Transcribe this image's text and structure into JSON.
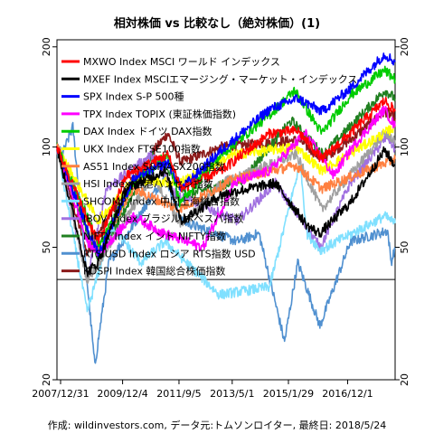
{
  "chart_data": {
    "type": "line",
    "title": "相対株価 vs 比較なし（絶対株価）(1)",
    "caption": "作成: wildinvestors.com, データ元:トムソンロイター, 最終日: 2018/5/24",
    "y_scale": "log",
    "ylim": [
      20,
      210
    ],
    "y_ticks": [
      20,
      50,
      100,
      200
    ],
    "x_range": [
      "2007-11-20",
      "2018-05-24"
    ],
    "x_ticks": [
      "2007/12/31",
      "2009/12/4",
      "2011/9/5",
      "2013/5/1",
      "2015/1/29",
      "2016/12/1"
    ],
    "reference_line": 40,
    "legend_position": "top-left",
    "series": [
      {
        "name": "MXWO Index MSCI ワールド インデックス",
        "color": "#ff0000",
        "points": [
          [
            "2007-11-20",
            100
          ],
          [
            "2008-10-15",
            62
          ],
          [
            "2009-03-09",
            52
          ],
          [
            "2010-01-15",
            82
          ],
          [
            "2011-05-01",
            95
          ],
          [
            "2011-10-04",
            75
          ],
          [
            "2013-01-01",
            85
          ],
          [
            "2014-06-30",
            110
          ],
          [
            "2015-05-15",
            112
          ],
          [
            "2016-02-11",
            92
          ],
          [
            "2017-01-01",
            110
          ],
          [
            "2018-01-26",
            138
          ],
          [
            "2018-05-24",
            128
          ]
        ]
      },
      {
        "name": "MXEF Index MSCIエマージング・マーケット・インデックス",
        "color": "#000000",
        "points": [
          [
            "2007-11-20",
            100
          ],
          [
            "2008-10-27",
            42
          ],
          [
            "2009-03-01",
            45
          ],
          [
            "2010-01-15",
            75
          ],
          [
            "2011-04-01",
            85
          ],
          [
            "2011-10-04",
            60
          ],
          [
            "2013-01-01",
            72
          ],
          [
            "2014-09-01",
            78
          ],
          [
            "2015-09-01",
            58
          ],
          [
            "2016-01-21",
            55
          ],
          [
            "2017-01-01",
            68
          ],
          [
            "2018-01-26",
            98
          ],
          [
            "2018-05-24",
            88
          ]
        ]
      },
      {
        "name": "SPX Index S-P 500種",
        "color": "#0000ff",
        "points": [
          [
            "2007-11-20",
            100
          ],
          [
            "2008-11-20",
            55
          ],
          [
            "2009-03-09",
            48
          ],
          [
            "2010-04-01",
            80
          ],
          [
            "2011-05-01",
            90
          ],
          [
            "2011-10-04",
            75
          ],
          [
            "2013-01-01",
            98
          ],
          [
            "2014-06-30",
            130
          ],
          [
            "2015-05-15",
            140
          ],
          [
            "2016-02-11",
            128
          ],
          [
            "2017-01-01",
            150
          ],
          [
            "2018-01-26",
            190
          ],
          [
            "2018-05-24",
            180
          ]
        ]
      },
      {
        "name": "TPX Index TOPIX (東証株価指数)",
        "color": "#ff00ff",
        "points": [
          [
            "2007-11-20",
            100
          ],
          [
            "2008-10-27",
            52
          ],
          [
            "2009-03-09",
            48
          ],
          [
            "2010-04-01",
            62
          ],
          [
            "2011-03-15",
            55
          ],
          [
            "2012-06-04",
            50
          ],
          [
            "2013-05-22",
            78
          ],
          [
            "2014-06-30",
            85
          ],
          [
            "2015-08-10",
            110
          ],
          [
            "2016-06-24",
            82
          ],
          [
            "2017-01-01",
            98
          ],
          [
            "2018-01-23",
            130
          ],
          [
            "2018-05-24",
            115
          ]
        ]
      },
      {
        "name": "DAX Index ドイツ DAX指数",
        "color": "#00cc00",
        "points": [
          [
            "2007-11-20",
            100
          ],
          [
            "2008-11-20",
            60
          ],
          [
            "2009-03-09",
            50
          ],
          [
            "2010-04-01",
            78
          ],
          [
            "2011-05-01",
            95
          ],
          [
            "2011-09-12",
            68
          ],
          [
            "2013-01-01",
            95
          ],
          [
            "2014-06-30",
            125
          ],
          [
            "2015-04-10",
            148
          ],
          [
            "2016-02-11",
            110
          ],
          [
            "2017-01-01",
            143
          ],
          [
            "2018-01-23",
            170
          ],
          [
            "2018-05-24",
            160
          ]
        ]
      },
      {
        "name": "UKX Index FTSE100指数",
        "color": "#ffff00",
        "points": [
          [
            "2007-11-20",
            100
          ],
          [
            "2009-03-03",
            60
          ],
          [
            "2010-04-01",
            80
          ],
          [
            "2011-09-01",
            78
          ],
          [
            "2013-05-22",
            95
          ],
          [
            "2015-04-27",
            100
          ],
          [
            "2016-02-11",
            85
          ],
          [
            "2018-05-24",
            115
          ]
        ]
      },
      {
        "name": "AS51 Index S&P/ASX200指数",
        "color": "#ff8040",
        "points": [
          [
            "2007-11-20",
            100
          ],
          [
            "2009-03-06",
            50
          ],
          [
            "2010-04-01",
            75
          ],
          [
            "2011-09-01",
            65
          ],
          [
            "2013-05-14",
            80
          ],
          [
            "2015-04-27",
            88
          ],
          [
            "2016-02-11",
            75
          ],
          [
            "2018-05-24",
            92
          ]
        ]
      },
      {
        "name": "HSI Index 香港ハンセン指数",
        "color": "#a0a0a0",
        "points": [
          [
            "2007-11-20",
            100
          ],
          [
            "2008-10-27",
            40
          ],
          [
            "2009-03-09",
            45
          ],
          [
            "2010-11-08",
            82
          ],
          [
            "2011-10-04",
            58
          ],
          [
            "2013-01-01",
            78
          ],
          [
            "2015-04-27",
            95
          ],
          [
            "2016-02-11",
            65
          ],
          [
            "2018-01-26",
            110
          ],
          [
            "2018-05-24",
            105
          ]
        ]
      },
      {
        "name": "SHCOMP Index 中国上海総合指数",
        "color": "#80e0ff",
        "points": [
          [
            "2007-11-20",
            100
          ],
          [
            "2008-10-28",
            32
          ],
          [
            "2009-08-04",
            58
          ],
          [
            "2010-07-01",
            45
          ],
          [
            "2011-04-01",
            52
          ],
          [
            "2012-12-03",
            36
          ],
          [
            "2014-06-30",
            38
          ],
          [
            "2015-06-12",
            90
          ],
          [
            "2015-08-26",
            55
          ],
          [
            "2016-01-28",
            49
          ],
          [
            "2018-01-26",
            62
          ],
          [
            "2018-05-24",
            59
          ]
        ]
      },
      {
        "name": "IBOV Index ブラジル ボベスパ指数",
        "color": "#a070e0",
        "points": [
          [
            "2007-11-20",
            100
          ],
          [
            "2008-10-27",
            40
          ],
          [
            "2009-06-01",
            75
          ],
          [
            "2010-11-01",
            95
          ],
          [
            "2011-08-08",
            72
          ],
          [
            "2013-07-01",
            60
          ],
          [
            "2014-09-02",
            78
          ],
          [
            "2016-01-26",
            50
          ],
          [
            "2017-01-01",
            78
          ],
          [
            "2018-02-26",
            108
          ],
          [
            "2018-05-24",
            98
          ]
        ]
      },
      {
        "name": "NIFTY Index インド NIFTY指数",
        "color": "#208020",
        "points": [
          [
            "2007-11-20",
            100
          ],
          [
            "2009-03-09",
            45
          ],
          [
            "2010-11-05",
            95
          ],
          [
            "2011-12-20",
            72
          ],
          [
            "2013-08-28",
            80
          ],
          [
            "2015-03-04",
            120
          ],
          [
            "2016-02-29",
            95
          ],
          [
            "2018-01-29",
            148
          ],
          [
            "2018-05-24",
            140
          ]
        ]
      },
      {
        "name": "RTSIUSD Index ロシア RTS指数 USD",
        "color": "#5090d0",
        "points": [
          [
            "2007-11-20",
            100
          ],
          [
            "2008-01-20",
            95
          ],
          [
            "2008-05-19",
            115
          ],
          [
            "2009-01-23",
            22
          ],
          [
            "2009-07-01",
            45
          ],
          [
            "2011-04-01",
            82
          ],
          [
            "2011-10-04",
            60
          ],
          [
            "2013-06-24",
            52
          ],
          [
            "2014-03-01",
            55
          ],
          [
            "2014-12-16",
            26
          ],
          [
            "2015-05-15",
            45
          ],
          [
            "2016-01-21",
            29
          ],
          [
            "2017-01-01",
            52
          ],
          [
            "2018-03-01",
            56
          ],
          [
            "2018-04-09",
            45
          ],
          [
            "2018-05-24",
            50
          ]
        ]
      },
      {
        "name": "KOSPI Index 韓国総合株価指数",
        "color": "#8b1a1a",
        "points": [
          [
            "2007-11-20",
            100
          ],
          [
            "2008-10-24",
            48
          ],
          [
            "2009-03-03",
            55
          ],
          [
            "2010-06-01",
            85
          ],
          [
            "2011-05-01",
            110
          ],
          [
            "2011-09-26",
            90
          ],
          [
            "2013-01-01",
            100
          ],
          [
            "2015-06-01",
            105
          ],
          [
            "2016-02-12",
            92
          ],
          [
            "2017-01-01",
            105
          ],
          [
            "2018-01-29",
            128
          ],
          [
            "2018-05-24",
            122
          ]
        ]
      }
    ]
  }
}
